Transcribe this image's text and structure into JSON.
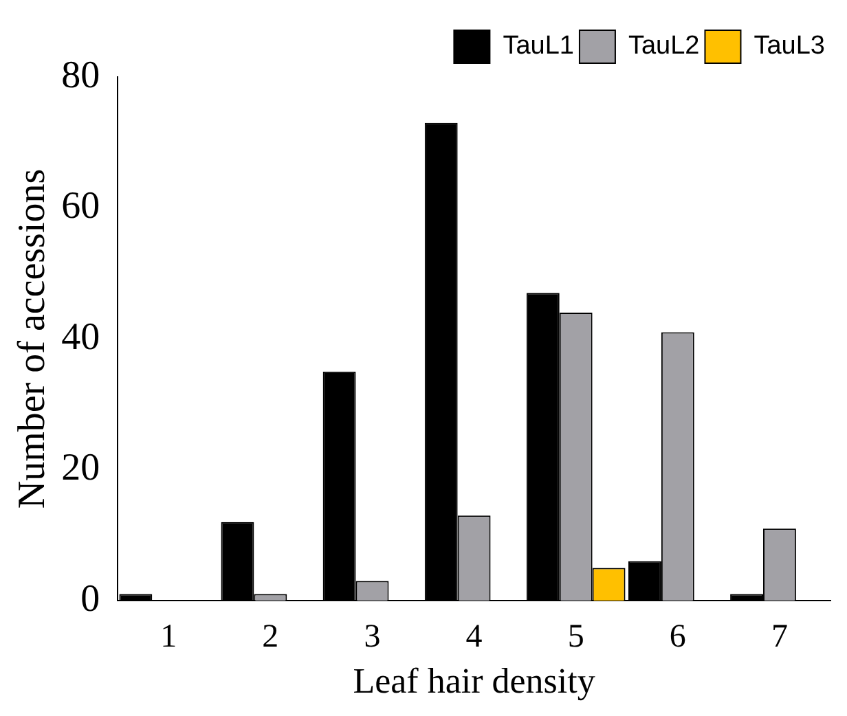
{
  "chart_data": {
    "type": "bar",
    "xlabel": "Leaf hair density",
    "ylabel": "Number of accessions",
    "categories": [
      "1",
      "2",
      "3",
      "4",
      "5",
      "6",
      "7"
    ],
    "series": [
      {
        "name": "TauL1",
        "color": "#000000",
        "values": [
          1,
          12,
          35,
          73,
          47,
          6,
          1
        ]
      },
      {
        "name": "TauL2",
        "color": "#a2a1a6",
        "values": [
          0,
          1,
          3,
          13,
          44,
          41,
          11
        ]
      },
      {
        "name": "TauL3",
        "color": "#ffc000",
        "values": [
          0,
          0,
          0,
          0,
          5,
          0,
          0
        ]
      }
    ],
    "ylim": [
      0,
      80
    ],
    "yticks": [
      0,
      20,
      40,
      60,
      80
    ],
    "grid": false,
    "legend": "top right"
  }
}
